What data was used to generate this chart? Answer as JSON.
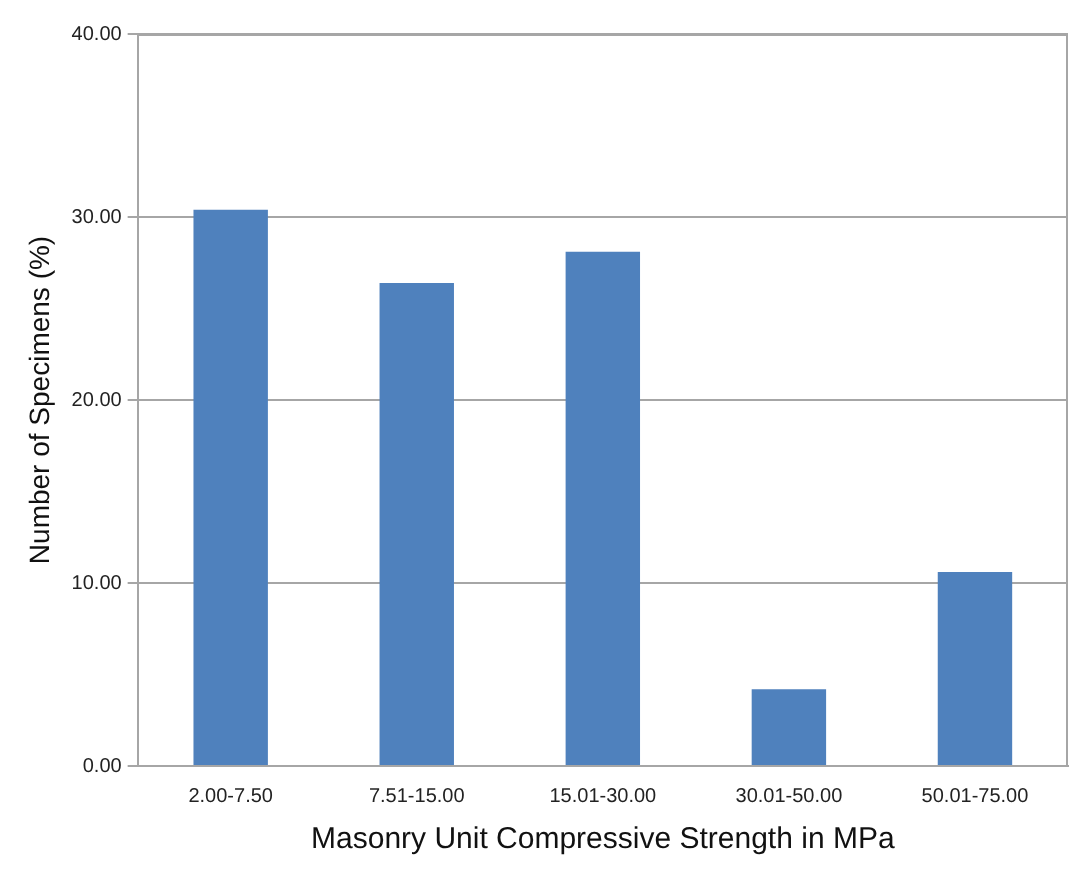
{
  "chart_data": {
    "type": "bar",
    "xlabel": "Masonry Unit Compressive Strength in MPa",
    "ylabel": "Number of Specimens (%)",
    "categories": [
      "2.00-7.50",
      "7.51-15.00",
      "15.01-30.00",
      "30.01-50.00",
      "50.01-75.00"
    ],
    "values": [
      30.4,
      26.4,
      28.1,
      4.2,
      10.6
    ],
    "color": "#4f81bd",
    "ylim": [
      0,
      40
    ],
    "yticks": [
      {
        "value": 0,
        "label": "0.00"
      },
      {
        "value": 10,
        "label": "10.00"
      },
      {
        "value": 20,
        "label": "20.00"
      },
      {
        "value": 30,
        "label": "30.00"
      },
      {
        "value": 40,
        "label": "40.00"
      }
    ],
    "grid": "y",
    "legend": false
  }
}
